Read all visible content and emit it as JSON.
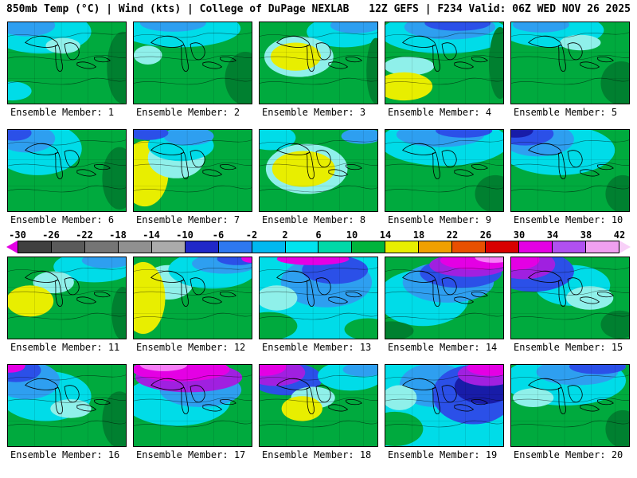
{
  "header": {
    "left": "850mb Temp (°C) | Wind (kts) | College of DuPage NEXLAB",
    "right": "12Z GEFS | F234 Valid: 06Z WED NOV 26 2025"
  },
  "colorbar": {
    "ticks": [
      "-30",
      "-26",
      "-22",
      "-18",
      "-14",
      "-10",
      "-6",
      "-2",
      "2",
      "6",
      "10",
      "14",
      "18",
      "22",
      "26",
      "30",
      "34",
      "38",
      "42"
    ],
    "segment_colors": [
      "#3f3f3f",
      "#5a5a5a",
      "#757575",
      "#909090",
      "#ababab",
      "#2028c8",
      "#2e78f0",
      "#00b8f0",
      "#00e4ee",
      "#00d8a8",
      "#00b43c",
      "#e8ee00",
      "#f0a000",
      "#e85000",
      "#d80000",
      "#e400e4",
      "#b050f0",
      "#f0a0f0"
    ],
    "left_tip_color": "#e400e4",
    "right_tip_color": "#f8d0f8"
  },
  "members": [
    {
      "id": 1,
      "label": "Ensemble Member: 1",
      "base": "#00aa3e",
      "blobs": [
        [
          "#00dce8",
          42,
          12,
          64,
          28
        ],
        [
          "#2e9ff0",
          24,
          4,
          36,
          14
        ],
        [
          "#8ff0ea",
          70,
          30,
          22,
          10
        ],
        [
          "#008030",
          146,
          58,
          20,
          46
        ],
        [
          "#00dce8",
          6,
          88,
          24,
          12
        ]
      ]
    },
    {
      "id": 2,
      "label": "Ensemble Member: 2",
      "base": "#00aa3e",
      "blobs": [
        [
          "#00dce8",
          58,
          8,
          78,
          24
        ],
        [
          "#2e9ff0",
          50,
          1,
          42,
          11
        ],
        [
          "#008030",
          142,
          72,
          26,
          34
        ],
        [
          "#8ff0ea",
          18,
          42,
          18,
          12
        ]
      ]
    },
    {
      "id": 3,
      "label": "Ensemble Member: 3",
      "base": "#00aa3e",
      "blobs": [
        [
          "#00dce8",
          108,
          12,
          48,
          20
        ],
        [
          "#2e9ff0",
          122,
          4,
          32,
          10
        ],
        [
          "#8ff0ea",
          50,
          44,
          44,
          26
        ],
        [
          "#e8ee00",
          46,
          44,
          32,
          18
        ],
        [
          "#008030",
          148,
          62,
          12,
          42
        ]
      ]
    },
    {
      "id": 4,
      "label": "Ensemble Member: 4",
      "base": "#00aa3e",
      "blobs": [
        [
          "#00dce8",
          75,
          14,
          82,
          26
        ],
        [
          "#2e9ff0",
          82,
          6,
          58,
          16
        ],
        [
          "#2b50e8",
          92,
          1,
          42,
          10
        ],
        [
          "#8ff0ea",
          30,
          56,
          32,
          12
        ],
        [
          "#e8ee00",
          24,
          82,
          36,
          18
        ],
        [
          "#008030",
          146,
          52,
          14,
          46
        ]
      ]
    },
    {
      "id": 5,
      "label": "Ensemble Member: 5",
      "base": "#00aa3e",
      "blobs": [
        [
          "#00dce8",
          52,
          10,
          66,
          22
        ],
        [
          "#2e9ff0",
          38,
          3,
          36,
          10
        ],
        [
          "#8ff0ea",
          88,
          26,
          26,
          10
        ],
        [
          "#008030",
          140,
          78,
          26,
          28
        ]
      ]
    },
    {
      "id": 6,
      "label": "Ensemble Member: 6",
      "base": "#00aa3e",
      "blobs": [
        [
          "#00dce8",
          38,
          24,
          56,
          34
        ],
        [
          "#2e9ff0",
          24,
          11,
          36,
          18
        ],
        [
          "#2b50e8",
          8,
          4,
          22,
          10
        ],
        [
          "#008030",
          142,
          62,
          22,
          40
        ]
      ]
    },
    {
      "id": 7,
      "label": "Ensemble Member: 7",
      "base": "#00aa3e",
      "blobs": [
        [
          "#e8ee00",
          14,
          56,
          30,
          42
        ],
        [
          "#8ff0ea",
          54,
          36,
          36,
          26
        ],
        [
          "#00dce8",
          60,
          20,
          42,
          20
        ],
        [
          "#2e9ff0",
          70,
          8,
          32,
          12
        ],
        [
          "#2b50e8",
          18,
          4,
          26,
          9
        ]
      ]
    },
    {
      "id": 8,
      "label": "Ensemble Member: 8",
      "base": "#00aa3e",
      "blobs": [
        [
          "#8ff0ea",
          60,
          50,
          52,
          32
        ],
        [
          "#e8ee00",
          56,
          50,
          40,
          23
        ],
        [
          "#00dce8",
          14,
          10,
          32,
          16
        ],
        [
          "#2e9ff0",
          130,
          8,
          26,
          10
        ]
      ]
    },
    {
      "id": 9,
      "label": "Ensemble Member: 9",
      "base": "#00aa3e",
      "blobs": [
        [
          "#00dce8",
          75,
          16,
          82,
          30
        ],
        [
          "#2e9ff0",
          70,
          6,
          56,
          16
        ],
        [
          "#2b50e8",
          100,
          1,
          36,
          9
        ],
        [
          "#008030",
          140,
          82,
          26,
          24
        ]
      ]
    },
    {
      "id": 10,
      "label": "Ensemble Member: 10",
      "base": "#00aa3e",
      "blobs": [
        [
          "#00dce8",
          60,
          26,
          72,
          32
        ],
        [
          "#2e9ff0",
          34,
          12,
          46,
          22
        ],
        [
          "#2b50e8",
          18,
          5,
          36,
          15
        ],
        [
          "#181ca8",
          6,
          1,
          22,
          9
        ],
        [
          "#008030",
          142,
          82,
          22,
          24
        ]
      ]
    },
    {
      "id": 11,
      "label": "Ensemble Member: 11",
      "base": "#00aa3e",
      "blobs": [
        [
          "#00dce8",
          110,
          12,
          52,
          20
        ],
        [
          "#2e9ff0",
          126,
          4,
          32,
          10
        ],
        [
          "#8ff0ea",
          58,
          32,
          26,
          14
        ],
        [
          "#e8ee00",
          28,
          56,
          30,
          20
        ],
        [
          "#008030",
          146,
          72,
          14,
          34
        ]
      ]
    },
    {
      "id": 12,
      "label": "Ensemble Member: 12",
      "base": "#00aa3e",
      "blobs": [
        [
          "#8ff0ea",
          44,
          32,
          32,
          22
        ],
        [
          "#e8ee00",
          12,
          52,
          28,
          46
        ],
        [
          "#00dce8",
          100,
          16,
          56,
          24
        ],
        [
          "#2e9ff0",
          116,
          8,
          42,
          13
        ],
        [
          "#2b50e8",
          132,
          2,
          26,
          8
        ],
        [
          "#e400e4",
          149,
          1,
          12,
          6
        ]
      ]
    },
    {
      "id": 13,
      "label": "Ensemble Member: 13",
      "base": "#00dce8",
      "blobs": [
        [
          "#2e9ff0",
          85,
          32,
          58,
          32
        ],
        [
          "#2b50e8",
          96,
          16,
          42,
          18
        ],
        [
          "#8ff0ea",
          22,
          52,
          26,
          16
        ],
        [
          "#e400e4",
          68,
          2,
          46,
          8
        ],
        [
          "#00aa3e",
          12,
          88,
          36,
          18
        ],
        [
          "#00aa3e",
          138,
          92,
          30,
          14
        ]
      ]
    },
    {
      "id": 14,
      "label": "Ensemble Member: 14",
      "base": "#00aa3e",
      "blobs": [
        [
          "#00dce8",
          48,
          52,
          58,
          36
        ],
        [
          "#2e9ff0",
          80,
          32,
          58,
          26
        ],
        [
          "#2b50e8",
          96,
          20,
          52,
          19
        ],
        [
          "#a020e0",
          106,
          10,
          50,
          15
        ],
        [
          "#e400e4",
          116,
          4,
          46,
          12
        ],
        [
          "#f77df7",
          138,
          0,
          24,
          7
        ],
        [
          "#008030",
          8,
          94,
          28,
          12
        ]
      ]
    },
    {
      "id": 15,
      "label": "Ensemble Member: 15",
      "base": "#00aa3e",
      "blobs": [
        [
          "#00dce8",
          78,
          36,
          48,
          26
        ],
        [
          "#2b50e8",
          28,
          18,
          52,
          26
        ],
        [
          "#a020e0",
          16,
          9,
          40,
          19
        ],
        [
          "#e400e4",
          6,
          3,
          30,
          13
        ],
        [
          "#8ff0ea",
          100,
          52,
          30,
          15
        ],
        [
          "#008030",
          138,
          86,
          24,
          18
        ]
      ]
    },
    {
      "id": 16,
      "label": "Ensemble Member: 16",
      "base": "#00aa3e",
      "blobs": [
        [
          "#00dce8",
          48,
          40,
          58,
          32
        ],
        [
          "#2e9ff0",
          24,
          20,
          42,
          24
        ],
        [
          "#2b50e8",
          10,
          7,
          32,
          15
        ],
        [
          "#e400e4",
          2,
          1,
          20,
          9
        ],
        [
          "#8ff0ea",
          80,
          56,
          26,
          12
        ],
        [
          "#008030",
          142,
          70,
          22,
          36
        ]
      ]
    },
    {
      "id": 17,
      "label": "Ensemble Member: 17",
      "base": "#00aa3e",
      "blobs": [
        [
          "#00dce8",
          55,
          46,
          68,
          32
        ],
        [
          "#2e9ff0",
          85,
          32,
          52,
          22
        ],
        [
          "#a020e0",
          70,
          16,
          68,
          19
        ],
        [
          "#e400e4",
          60,
          6,
          62,
          15
        ],
        [
          "#f77df7",
          38,
          0,
          30,
          8
        ]
      ]
    },
    {
      "id": 18,
      "label": "Ensemble Member: 18",
      "base": "#00aa3e",
      "blobs": [
        [
          "#2b50e8",
          34,
          18,
          46,
          21
        ],
        [
          "#a020e0",
          20,
          10,
          38,
          17
        ],
        [
          "#e400e4",
          6,
          2,
          28,
          12
        ],
        [
          "#8ff0ea",
          68,
          42,
          28,
          14
        ],
        [
          "#e8ee00",
          54,
          56,
          26,
          16
        ],
        [
          "#00dce8",
          116,
          14,
          42,
          19
        ],
        [
          "#2e9ff0",
          132,
          6,
          26,
          9
        ]
      ]
    },
    {
      "id": 19,
      "label": "Ensemble Member: 19",
      "base": "#00dce8",
      "blobs": [
        [
          "#2e9ff0",
          62,
          26,
          44,
          28
        ],
        [
          "#2b50e8",
          112,
          38,
          52,
          38
        ],
        [
          "#181ca8",
          126,
          28,
          38,
          22
        ],
        [
          "#a020e0",
          130,
          12,
          38,
          15
        ],
        [
          "#e400e4",
          136,
          4,
          32,
          10
        ],
        [
          "#8ff0ea",
          18,
          42,
          22,
          16
        ],
        [
          "#00aa3e",
          12,
          82,
          36,
          22
        ]
      ]
    },
    {
      "id": 20,
      "label": "Ensemble Member: 20",
      "base": "#00aa3e",
      "blobs": [
        [
          "#00dce8",
          68,
          20,
          78,
          32
        ],
        [
          "#2e9ff0",
          84,
          9,
          52,
          17
        ],
        [
          "#2b50e8",
          110,
          2,
          36,
          10
        ],
        [
          "#8ff0ea",
          28,
          42,
          26,
          12
        ],
        [
          "#008030",
          142,
          82,
          22,
          24
        ]
      ]
    }
  ]
}
